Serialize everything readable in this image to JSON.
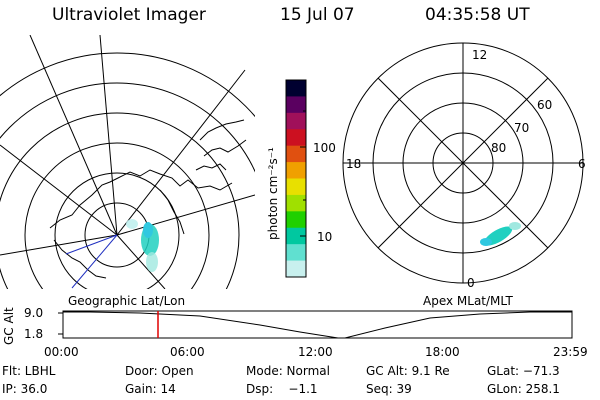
{
  "header": {
    "title": "Ultraviolet Imager",
    "date": "15 Jul 07",
    "time": "04:35:58 UT"
  },
  "geo_map": {
    "label": "Geographic Lat/Lon"
  },
  "color_bar": {
    "unit_label": "photon cm⁻²s⁻¹",
    "tick_labels": [
      "100",
      "10"
    ],
    "colors": [
      "#000030",
      "#5a0060",
      "#a0105a",
      "#cc1020",
      "#e05010",
      "#f0a000",
      "#e8e000",
      "#a0e000",
      "#20d000",
      "#00c8a0",
      "#60e0d0",
      "#c8f0ee"
    ]
  },
  "polar_plot": {
    "label": "Apex MLat/MLT",
    "hour_labels": [
      "12",
      "18",
      "6",
      "0"
    ],
    "lat_labels": [
      "60",
      "70",
      "80"
    ]
  },
  "timeline": {
    "axis_label": "GC Alt",
    "y_ticks": [
      "9.0",
      "1.8"
    ],
    "x_ticks": [
      "00:00",
      "06:00",
      "12:00",
      "18:00",
      "23:59"
    ],
    "current_marker_color": "#e00000"
  },
  "status": {
    "row1": [
      "Flt: LBHL",
      "Door: Open",
      "Mode: Normal",
      "GC Alt: 9.1 Re",
      "GLat: −71.3"
    ],
    "row2": [
      "IP: 36.0",
      "Gain: 14",
      "Dsp:    −1.1",
      "Seq: 39",
      "GLon: 258.1"
    ]
  }
}
